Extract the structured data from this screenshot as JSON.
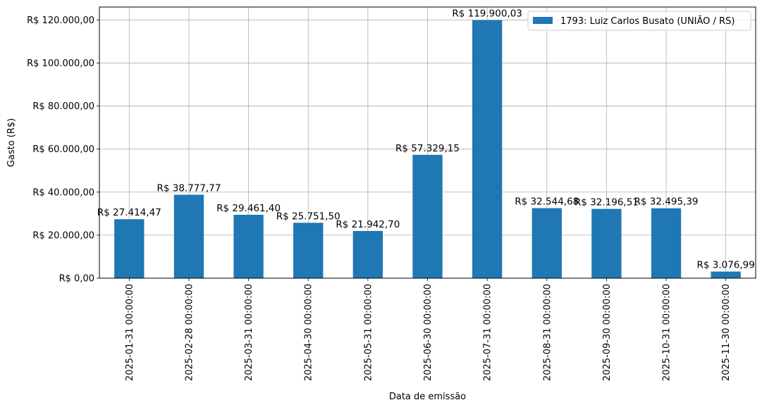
{
  "chart_data": {
    "type": "bar",
    "xlabel": "Data de emissão",
    "ylabel": "Gasto (R$)",
    "ylim": [
      0,
      126000
    ],
    "grid": true,
    "legend_position": "top-right",
    "bar_color": "#1f77b4",
    "categories": [
      "2025-01-31 00:00:00",
      "2025-02-28 00:00:00",
      "2025-03-31 00:00:00",
      "2025-04-30 00:00:00",
      "2025-05-31 00:00:00",
      "2025-06-30 00:00:00",
      "2025-07-31 00:00:00",
      "2025-08-31 00:00:00",
      "2025-09-30 00:00:00",
      "2025-10-31 00:00:00",
      "2025-11-30 00:00:00"
    ],
    "series": [
      {
        "name": "1793: Luiz Carlos Busato (UNIÃO / RS)",
        "values": [
          27414.47,
          38777.77,
          29461.4,
          25751.5,
          21942.7,
          57329.15,
          119900.03,
          32544.68,
          32196.51,
          32495.39,
          3076.99
        ],
        "labels": [
          "R$ 27.414,47",
          "R$ 38.777,77",
          "R$ 29.461,40",
          "R$ 25.751,50",
          "R$ 21.942,70",
          "R$ 57.329,15",
          "R$ 119.900,03",
          "R$ 32.544,68",
          "R$ 32.196,51",
          "R$ 32.495,39",
          "R$ 3.076,99"
        ]
      }
    ],
    "yticks": [
      0,
      20000,
      40000,
      60000,
      80000,
      100000,
      120000
    ],
    "ytick_labels": [
      "R$ 0,00",
      "R$ 20.000,00",
      "R$ 40.000,00",
      "R$ 60.000,00",
      "R$ 80.000,00",
      "R$ 100.000,00",
      "R$ 120.000,00"
    ]
  }
}
